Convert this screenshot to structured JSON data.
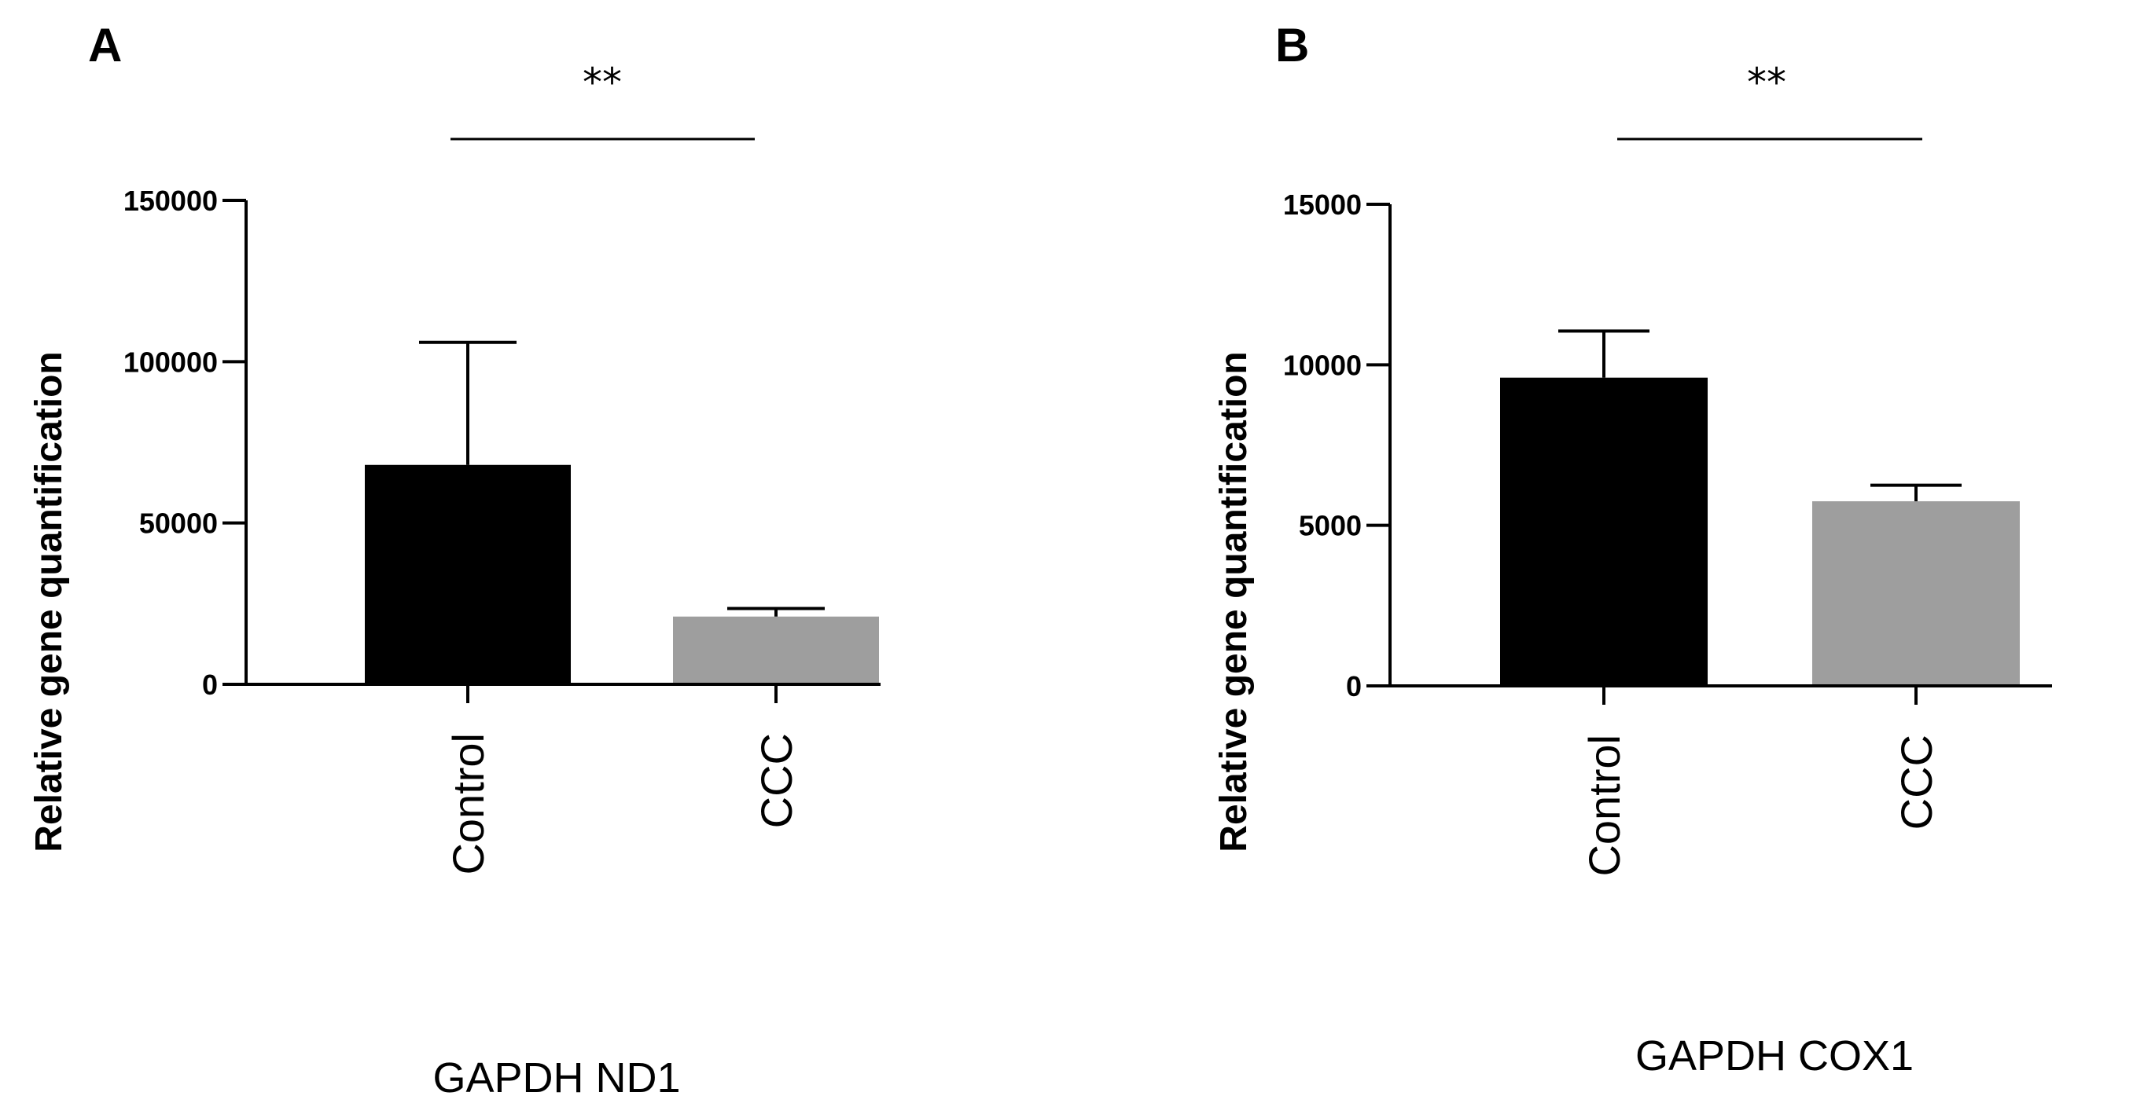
{
  "chart_data": [
    {
      "type": "bar",
      "panel": "A",
      "categories": [
        "Control",
        "CCC"
      ],
      "values": [
        68000,
        21000
      ],
      "errors": [
        38000,
        2500
      ],
      "colors": [
        "#000000",
        "#9e9e9e"
      ],
      "ylabel": "Relative gene quantification",
      "xlabel": "GAPDH ND1",
      "ylim": [
        0,
        150000
      ],
      "yticks": [
        0,
        50000,
        100000,
        150000
      ],
      "significance": "**"
    },
    {
      "type": "bar",
      "panel": "B",
      "categories": [
        "Control",
        "CCC"
      ],
      "values": [
        9600,
        5750
      ],
      "errors": [
        1450,
        500
      ],
      "colors": [
        "#000000",
        "#9e9e9e"
      ],
      "ylabel": "Relative gene quantification",
      "xlabel": "GAPDH COX1",
      "ylim": [
        0,
        15000
      ],
      "yticks": [
        0,
        5000,
        10000,
        15000
      ],
      "significance": "**"
    }
  ]
}
